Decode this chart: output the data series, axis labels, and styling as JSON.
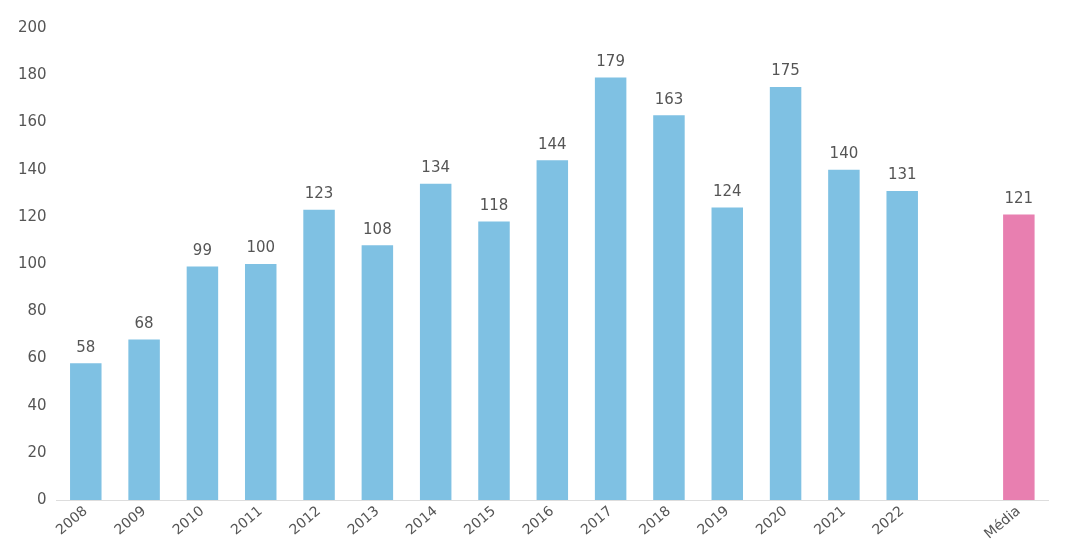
{
  "chart_data": {
    "type": "bar",
    "categories": [
      "2008",
      "2009",
      "2010",
      "2011",
      "2012",
      "2013",
      "2014",
      "2015",
      "2016",
      "2017",
      "2018",
      "2019",
      "2020",
      "2021",
      "2022",
      null,
      "Média"
    ],
    "values": [
      58,
      68,
      99,
      100,
      123,
      108,
      134,
      118,
      144,
      179,
      163,
      124,
      175,
      140,
      131,
      null,
      121
    ],
    "colors": [
      "#7fc1e3",
      "#7fc1e3",
      "#7fc1e3",
      "#7fc1e3",
      "#7fc1e3",
      "#7fc1e3",
      "#7fc1e3",
      "#7fc1e3",
      "#7fc1e3",
      "#7fc1e3",
      "#7fc1e3",
      "#7fc1e3",
      "#7fc1e3",
      "#7fc1e3",
      "#7fc1e3",
      "#7fc1e3",
      "#e87fb0"
    ],
    "ylim": [
      0,
      200
    ],
    "yticks": [
      0,
      20,
      40,
      60,
      80,
      100,
      120,
      140,
      160,
      180,
      200
    ],
    "grid": false,
    "legend": false,
    "data_labels": true
  }
}
